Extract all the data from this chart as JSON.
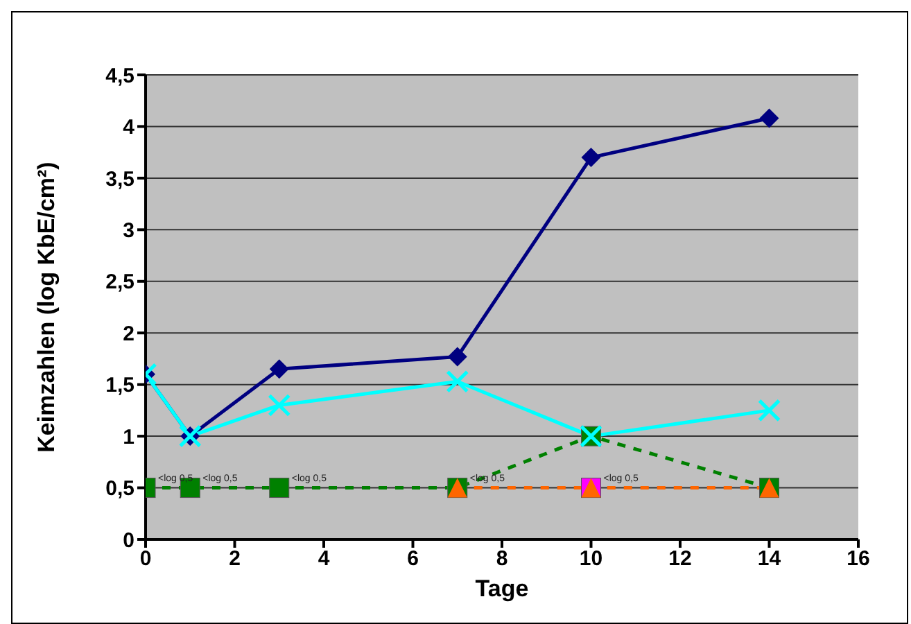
{
  "chart_data": {
    "type": "line",
    "xlabel": "Tage",
    "ylabel": "Keimzahlen (log KbE/cm²)",
    "xlim": [
      0,
      16
    ],
    "xticks": [
      0,
      2,
      4,
      6,
      8,
      10,
      12,
      14,
      16
    ],
    "ylim": [
      0,
      4.5
    ],
    "yticks": [
      0,
      {
        "value": 0.5,
        "label": "0,5"
      },
      1,
      {
        "value": 1.5,
        "label": "1,5"
      },
      2,
      {
        "value": 2.5,
        "label": "2,5"
      },
      3,
      {
        "value": 3.5,
        "label": "3,5"
      },
      4,
      {
        "value": 4.5,
        "label": "4,5"
      }
    ],
    "grid": "y",
    "legend": false,
    "series": [
      {
        "color": "#000080",
        "marker": "diamond",
        "line_style": "solid",
        "x": [
          0,
          1,
          3,
          7,
          10,
          14
        ],
        "values": [
          1.6,
          1.0,
          1.65,
          1.77,
          3.7,
          4.08
        ]
      },
      {
        "color": "#008000",
        "marker": "square",
        "line_style": "dashed",
        "x": [
          0,
          1,
          3,
          7,
          10,
          14
        ],
        "values": [
          0.5,
          0.5,
          0.5,
          0.5,
          1.0,
          0.5
        ]
      },
      {
        "color": "#00ffff",
        "marker": "cross",
        "line_style": "solid",
        "x": [
          0,
          1,
          3,
          7,
          10,
          14
        ],
        "values": [
          1.6,
          1.0,
          1.3,
          1.53,
          1.0,
          1.25
        ]
      },
      {
        "color": "#ff00ff",
        "marker": "square",
        "line_style": "solid",
        "x": [
          10
        ],
        "values": [
          0.5
        ]
      },
      {
        "color": "#ff6600",
        "marker": "triangle",
        "line_style": "dashed",
        "x": [
          7,
          10,
          14
        ],
        "values": [
          0.5,
          0.5,
          0.5
        ]
      }
    ],
    "annotations": [
      {
        "text": "<log 0,5",
        "x": 0,
        "y": 0.5
      },
      {
        "text": "<log 0,5",
        "x": 1,
        "y": 0.5
      },
      {
        "text": "<log 0,5",
        "x": 3,
        "y": 0.5
      },
      {
        "text": "<log 0,5",
        "x": 7,
        "y": 0.5
      },
      {
        "text": "<log 0,5",
        "x": 10,
        "y": 0.5
      }
    ]
  }
}
